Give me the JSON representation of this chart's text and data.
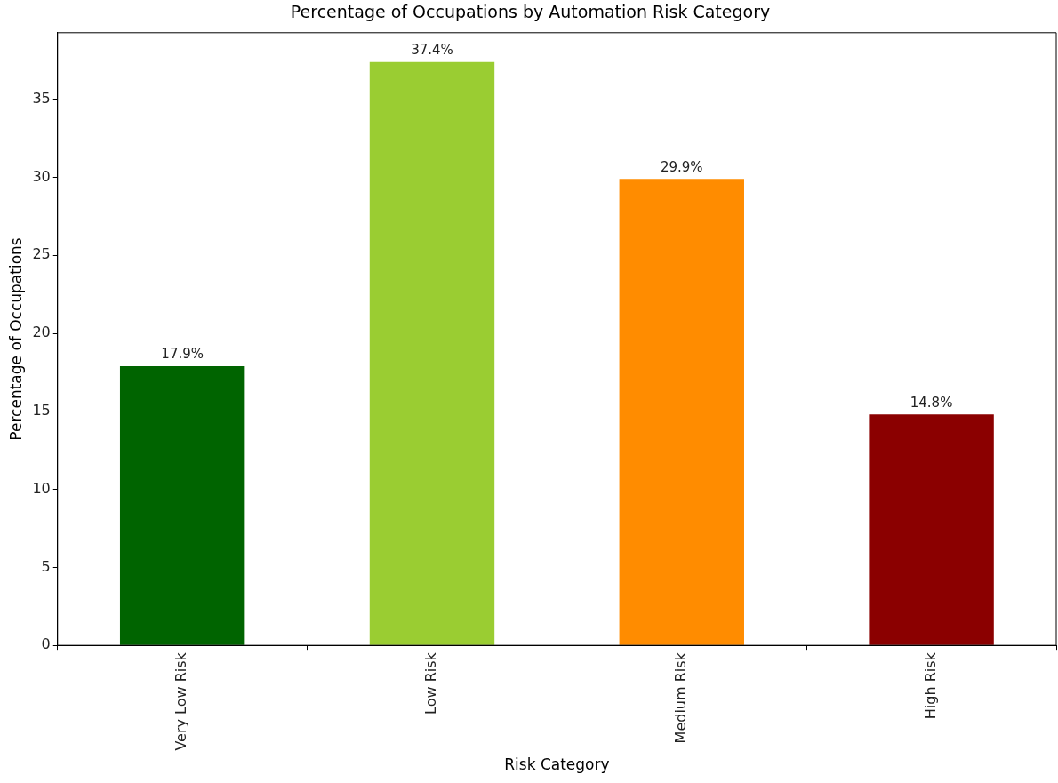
{
  "chart_data": {
    "type": "bar",
    "title": "Percentage of Occupations by Automation Risk Category",
    "xlabel": "Risk Category",
    "ylabel": "Percentage of Occupations",
    "categories": [
      "Very Low Risk",
      "Low Risk",
      "Medium Risk",
      "High Risk"
    ],
    "values": [
      17.9,
      37.4,
      29.9,
      14.8
    ],
    "colors": [
      "#006400",
      "#9acd32",
      "#ff8c00",
      "#8b0000"
    ],
    "value_labels": [
      "17.9%",
      "37.4%",
      "29.9%",
      "14.8%"
    ],
    "ylim": [
      0,
      39.27
    ],
    "yticks": [
      0,
      5,
      10,
      15,
      20,
      25,
      30,
      35
    ],
    "grid": false,
    "legend": false
  }
}
